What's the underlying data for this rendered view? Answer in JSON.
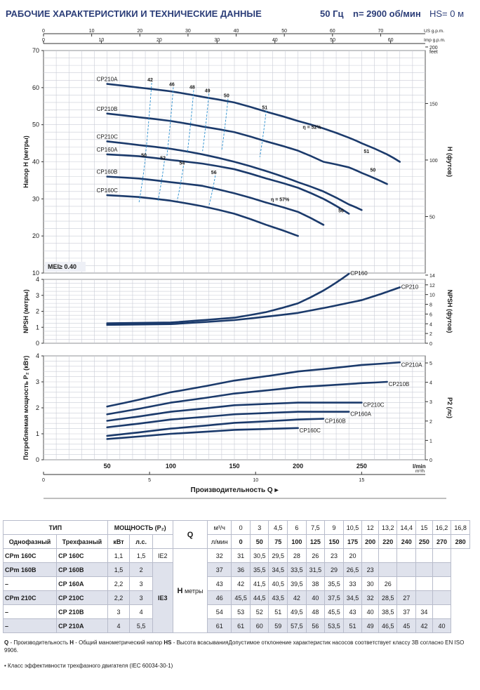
{
  "header": {
    "title": "РАБОЧИЕ ХАРАКТЕРИСТИКИ И ТЕХНИЧЕСКИЕ ДАННЫЕ",
    "frequency": "50 Гц",
    "speed": "n= 2900 об/мин",
    "hs": "HS= 0 м"
  },
  "chart_data": [
    {
      "type": "line",
      "title": "",
      "xlabel": "",
      "ylabel": "Напор H (метры)",
      "y2label": "H (футов)",
      "x_unit": "l/min",
      "xlim": [
        0,
        300
      ],
      "ylim": [
        10,
        70
      ],
      "y_ticks": [
        10,
        20,
        30,
        40,
        50,
        60,
        70
      ],
      "y2_ticks": [
        "50",
        "100",
        "150",
        "200"
      ],
      "y2_unit": "feet",
      "top_axis_us": {
        "unit": "US g.p.m.",
        "ticks": [
          "0",
          "10",
          "20",
          "30",
          "40",
          "50",
          "60",
          "70"
        ]
      },
      "top_axis_imp": {
        "unit": "Imp g.p.m.",
        "ticks": [
          "0",
          "10",
          "20",
          "30",
          "40",
          "50",
          "60"
        ]
      },
      "badge": "MEI≥ 0.40",
      "series": [
        {
          "name": "CP210A",
          "x": [
            50,
            75,
            100,
            125,
            150,
            175,
            200,
            220,
            240,
            250,
            270,
            280
          ],
          "y": [
            61,
            60,
            59,
            57.5,
            56,
            53.5,
            51,
            49,
            46.5,
            45,
            42,
            40
          ]
        },
        {
          "name": "CP210B",
          "x": [
            50,
            75,
            100,
            125,
            150,
            175,
            200,
            220,
            240,
            250,
            270
          ],
          "y": [
            53,
            52,
            51,
            49.5,
            48,
            45.5,
            43,
            40,
            38.5,
            37,
            34
          ]
        },
        {
          "name": "CP210C",
          "x": [
            50,
            75,
            100,
            125,
            150,
            175,
            200,
            220,
            240,
            250
          ],
          "y": [
            45.5,
            44.5,
            43.5,
            42,
            40,
            37.5,
            34.5,
            32,
            28.5,
            27
          ]
        },
        {
          "name": "CP160A",
          "x": [
            50,
            75,
            100,
            125,
            150,
            175,
            200,
            220,
            240
          ],
          "y": [
            42,
            41.5,
            40.5,
            39.5,
            38,
            35.5,
            33,
            30,
            26
          ]
        },
        {
          "name": "CP160B",
          "x": [
            50,
            75,
            100,
            125,
            150,
            175,
            200,
            220
          ],
          "y": [
            36,
            35.5,
            34.5,
            33.5,
            31.5,
            29,
            26.5,
            23
          ]
        },
        {
          "name": "CP160C",
          "x": [
            50,
            75,
            100,
            125,
            150,
            175,
            200
          ],
          "y": [
            31,
            30.5,
            29.5,
            28,
            26,
            23,
            20
          ]
        }
      ],
      "efficiency_labels": {
        "cp210": [
          "42",
          "46",
          "48",
          "49",
          "50",
          "51",
          "η = 52%",
          "51",
          "50"
        ],
        "cp160": [
          "50",
          "52",
          "54",
          "56",
          "η = 57%",
          "56"
        ]
      }
    },
    {
      "type": "line",
      "ylabel": "NPSH (метры)",
      "y2label": "NPSH (футов)",
      "xlim": [
        0,
        300
      ],
      "ylim": [
        0,
        4
      ],
      "y_ticks": [
        0,
        1,
        2,
        3,
        4
      ],
      "y2_ticks": [
        "0",
        "2",
        "4",
        "6",
        "8",
        "10",
        "12",
        "14"
      ],
      "series": [
        {
          "name": "CP160",
          "x": [
            50,
            100,
            150,
            175,
            200,
            220,
            240
          ],
          "y": [
            1.25,
            1.3,
            1.6,
            1.95,
            2.5,
            3.3,
            4.35
          ]
        },
        {
          "name": "CP210",
          "x": [
            50,
            100,
            150,
            200,
            250,
            280
          ],
          "y": [
            1.15,
            1.2,
            1.45,
            1.9,
            2.7,
            3.5
          ]
        }
      ]
    },
    {
      "type": "line",
      "ylabel": "Потребляемая мощность P₂ (кВт)",
      "y2label": "P2 (лс)",
      "xlabel": "Производительность Q",
      "xlim": [
        0,
        300
      ],
      "ylim": [
        0,
        4
      ],
      "y_ticks": [
        0,
        1,
        2,
        3,
        4
      ],
      "y2_ticks": [
        "0",
        "1",
        "2",
        "3",
        "4",
        "5"
      ],
      "x_ticks": [
        "50",
        "100",
        "150",
        "200",
        "250"
      ],
      "x_unit": "l/min",
      "x2_ticks": [
        "0",
        "5",
        "10",
        "15"
      ],
      "x2_unit": "m³/h",
      "series": [
        {
          "name": "CP210A",
          "x": [
            50,
            100,
            150,
            200,
            250,
            280
          ],
          "y": [
            2.05,
            2.6,
            3.05,
            3.4,
            3.65,
            3.75
          ]
        },
        {
          "name": "CP210B",
          "x": [
            50,
            100,
            150,
            200,
            250,
            270
          ],
          "y": [
            1.75,
            2.2,
            2.55,
            2.8,
            2.95,
            3.0
          ]
        },
        {
          "name": "CP210C",
          "x": [
            50,
            100,
            150,
            200,
            250
          ],
          "y": [
            1.5,
            1.85,
            2.1,
            2.2,
            2.2
          ]
        },
        {
          "name": "CP160A",
          "x": [
            50,
            100,
            150,
            200,
            240
          ],
          "y": [
            1.25,
            1.55,
            1.75,
            1.85,
            1.85
          ]
        },
        {
          "name": "CP160B",
          "x": [
            50,
            100,
            150,
            200,
            220
          ],
          "y": [
            0.92,
            1.2,
            1.42,
            1.55,
            1.58
          ]
        },
        {
          "name": "CP160C",
          "x": [
            50,
            100,
            150,
            200
          ],
          "y": [
            0.8,
            1.0,
            1.15,
            1.22
          ]
        }
      ]
    }
  ],
  "table": {
    "h_type": "ТИП",
    "h_power": "МОЩНОСТЬ (P₂)",
    "h_single": "Однофазный",
    "h_three": "Трехфазный",
    "h_kw": "кВт",
    "h_hp": "л.с.",
    "q_label": "Q",
    "q_unit1": "м³/ч",
    "q_unit2": "л/мин",
    "h_label": "H",
    "h_unit": "метры",
    "q_m3h": [
      "0",
      "3",
      "4,5",
      "6",
      "7,5",
      "9",
      "10,5",
      "12",
      "13,2",
      "14,4",
      "15",
      "16,2",
      "16,8"
    ],
    "q_lmin": [
      "0",
      "50",
      "75",
      "100",
      "125",
      "150",
      "175",
      "200",
      "220",
      "240",
      "250",
      "270",
      "280"
    ],
    "ie2": "IE2",
    "ie3": "IE3",
    "rows": [
      {
        "single": "CPm 160C",
        "three": "CP 160C",
        "kw": "1,1",
        "hp": "1,5",
        "h": [
          "32",
          "31",
          "30,5",
          "29,5",
          "28",
          "26",
          "23",
          "20",
          "",
          "",
          "",
          "",
          ""
        ]
      },
      {
        "single": "CPm 160B",
        "three": "CP 160B",
        "kw": "1,5",
        "hp": "2",
        "h": [
          "37",
          "36",
          "35,5",
          "34,5",
          "33,5",
          "31,5",
          "29",
          "26,5",
          "23",
          "",
          "",
          "",
          ""
        ]
      },
      {
        "single": "–",
        "three": "CP 160A",
        "kw": "2,2",
        "hp": "3",
        "h": [
          "43",
          "42",
          "41,5",
          "40,5",
          "39,5",
          "38",
          "35,5",
          "33",
          "30",
          "26",
          "",
          "",
          ""
        ]
      },
      {
        "single": "CPm 210C",
        "three": "CP 210C",
        "kw": "2,2",
        "hp": "3",
        "h": [
          "46",
          "45,5",
          "44,5",
          "43,5",
          "42",
          "40",
          "37,5",
          "34,5",
          "32",
          "28,5",
          "27",
          "",
          ""
        ]
      },
      {
        "single": "–",
        "three": "CP 210B",
        "kw": "3",
        "hp": "4",
        "h": [
          "54",
          "53",
          "52",
          "51",
          "49,5",
          "48",
          "45,5",
          "43",
          "40",
          "38,5",
          "37",
          "34",
          ""
        ]
      },
      {
        "single": "–",
        "three": "CP 210A",
        "kw": "4",
        "hp": "5,5",
        "h": [
          "61",
          "61",
          "60",
          "59",
          "57,5",
          "56",
          "53,5",
          "51",
          "49",
          "46,5",
          "45",
          "42",
          "40"
        ]
      }
    ]
  },
  "footnotes": {
    "q_abbr": "Q",
    "q_text": " - Производительность ",
    "h_abbr": "H",
    "h_text": " - Общий манометрический напор ",
    "hs_abbr": "HS",
    "hs_text": " - Высота всасыванияДопустимое отклонение характеристик насосов соответствует классу 3B согласно EN ISO 9906.",
    "mark": "•",
    "ie_text": "Класс эффективности трехфазного двигателя (IEC 60034-30-1)"
  },
  "colors": {
    "curve": "#1b3a6b",
    "efficiency": "#2a8fd0",
    "title": "#2b3d78",
    "grid": "#c9ccd6",
    "plot_bg": "#ffffff",
    "table_stripe": "#dfe2ec"
  }
}
